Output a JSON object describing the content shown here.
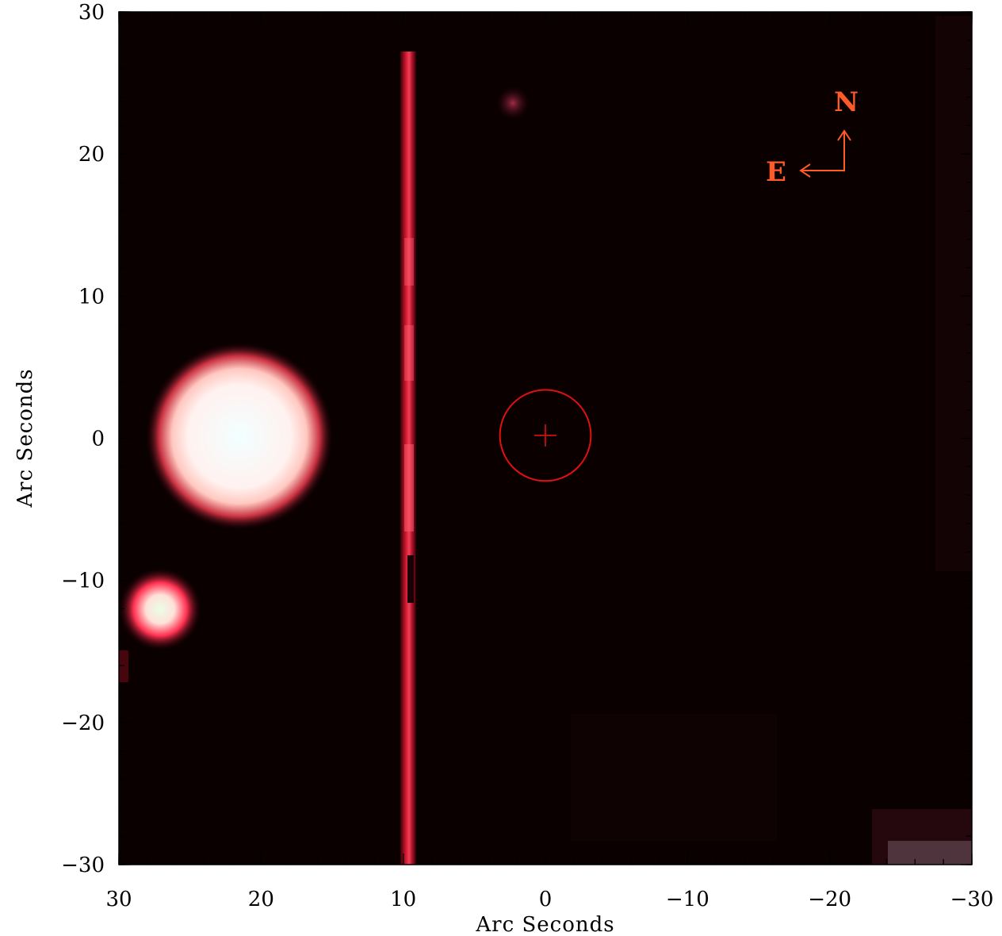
{
  "axes": {
    "xlabel": "Arc Seconds",
    "ylabel": "Arc Seconds",
    "xlim": [
      30,
      -30
    ],
    "ylim": [
      -30,
      30
    ],
    "x_ticks": [
      30,
      20,
      10,
      0,
      -10,
      -20,
      -30
    ],
    "x_tick_labels": [
      "30",
      "20",
      "10",
      "0",
      "−10",
      "−20",
      "−30"
    ],
    "y_ticks": [
      30,
      20,
      10,
      0,
      -10,
      -20,
      -30
    ],
    "y_tick_labels": [
      "30",
      "20",
      "10",
      "0",
      "−10",
      "−20",
      "−30"
    ],
    "minor_step": 2
  },
  "compass": {
    "north_label": "N",
    "east_label": "E",
    "color": "#ff5a28"
  },
  "target_marker": {
    "x": 0,
    "y": 0.2,
    "radius": 3.2,
    "color": "#e01010"
  },
  "colors": {
    "background": "#0a0000",
    "streak": "#c8102a",
    "star_core": "#eef8f8"
  }
}
